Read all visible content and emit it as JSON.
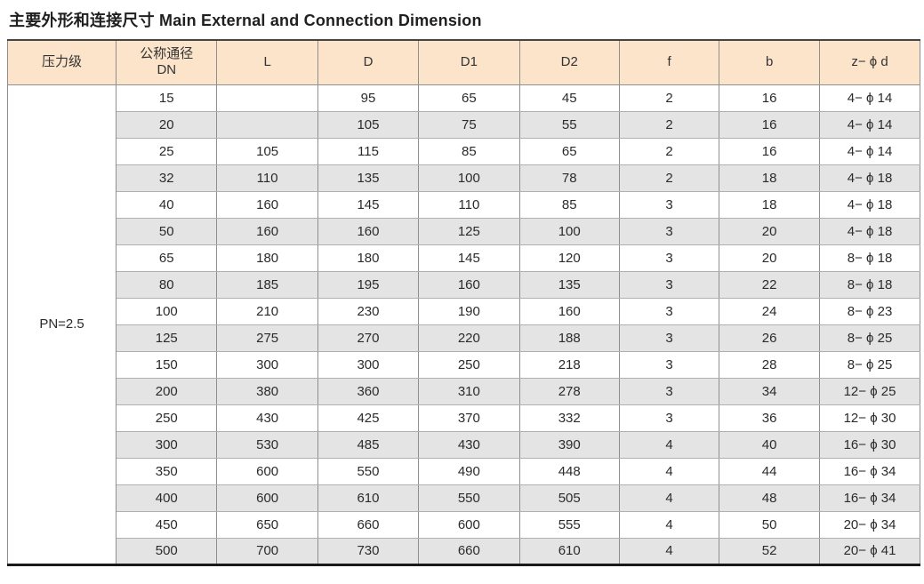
{
  "title": "主要外形和连接尺寸 Main External and Connection Dimension",
  "table": {
    "columns": [
      {
        "label": "压力级",
        "sublabel": ""
      },
      {
        "label": "公称通径",
        "sublabel": "DN"
      },
      {
        "label": "L",
        "sublabel": ""
      },
      {
        "label": "D",
        "sublabel": ""
      },
      {
        "label": "D1",
        "sublabel": ""
      },
      {
        "label": "D2",
        "sublabel": ""
      },
      {
        "label": "f",
        "sublabel": ""
      },
      {
        "label": "b",
        "sublabel": ""
      },
      {
        "label": "z− ϕ d",
        "sublabel": ""
      }
    ],
    "pressure_class": "PN=2.5",
    "rows": [
      [
        "15",
        "",
        "95",
        "65",
        "45",
        "2",
        "16",
        "4− ϕ 14"
      ],
      [
        "20",
        "",
        "105",
        "75",
        "55",
        "2",
        "16",
        "4− ϕ 14"
      ],
      [
        "25",
        "105",
        "115",
        "85",
        "65",
        "2",
        "16",
        "4− ϕ 14"
      ],
      [
        "32",
        "110",
        "135",
        "100",
        "78",
        "2",
        "18",
        "4− ϕ 18"
      ],
      [
        "40",
        "160",
        "145",
        "110",
        "85",
        "3",
        "18",
        "4− ϕ 18"
      ],
      [
        "50",
        "160",
        "160",
        "125",
        "100",
        "3",
        "20",
        "4− ϕ 18"
      ],
      [
        "65",
        "180",
        "180",
        "145",
        "120",
        "3",
        "20",
        "8− ϕ 18"
      ],
      [
        "80",
        "185",
        "195",
        "160",
        "135",
        "3",
        "22",
        "8− ϕ 18"
      ],
      [
        "100",
        "210",
        "230",
        "190",
        "160",
        "3",
        "24",
        "8− ϕ 23"
      ],
      [
        "125",
        "275",
        "270",
        "220",
        "188",
        "3",
        "26",
        "8− ϕ 25"
      ],
      [
        "150",
        "300",
        "300",
        "250",
        "218",
        "3",
        "28",
        "8− ϕ 25"
      ],
      [
        "200",
        "380",
        "360",
        "310",
        "278",
        "3",
        "34",
        "12− ϕ 25"
      ],
      [
        "250",
        "430",
        "425",
        "370",
        "332",
        "3",
        "36",
        "12− ϕ 30"
      ],
      [
        "300",
        "530",
        "485",
        "430",
        "390",
        "4",
        "40",
        "16− ϕ 30"
      ],
      [
        "350",
        "600",
        "550",
        "490",
        "448",
        "4",
        "44",
        "16− ϕ 34"
      ],
      [
        "400",
        "600",
        "610",
        "550",
        "505",
        "4",
        "48",
        "16− ϕ 34"
      ],
      [
        "450",
        "650",
        "660",
        "600",
        "555",
        "4",
        "50",
        "20− ϕ 34"
      ],
      [
        "500",
        "700",
        "730",
        "660",
        "610",
        "4",
        "52",
        "20− ϕ 41"
      ]
    ],
    "colors": {
      "header_bg": "#fce4ca",
      "stripe_bg": "#e4e4e4",
      "grid_vertical": "#8f8f8f",
      "grid_horizontal": "#b0b0b0",
      "outer_bottom": "#1a1a1a",
      "text": "#2b2b2b"
    }
  }
}
